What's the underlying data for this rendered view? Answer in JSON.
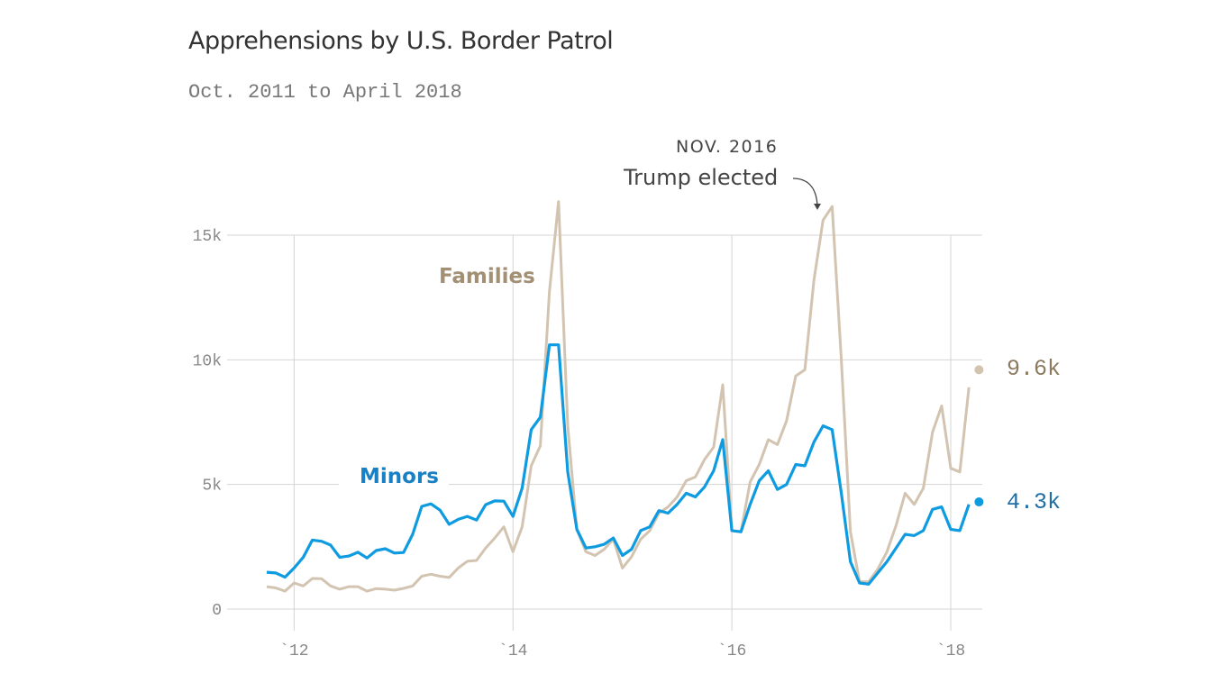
{
  "chart_data": {
    "type": "line",
    "title": "Apprehensions by U.S. Border Patrol",
    "subtitle": "Oct. 2011 to April 2018",
    "x_start": "2011-10",
    "x_end": "2018-04",
    "x_interval": "month",
    "xlabel": "",
    "ylabel": "",
    "ylim": [
      0,
      15000
    ],
    "yticks": [
      {
        "value": 0,
        "label": "0"
      },
      {
        "value": 5000,
        "label": "5k"
      },
      {
        "value": 10000,
        "label": "10k"
      },
      {
        "value": 15000,
        "label": "15k"
      }
    ],
    "xticks": [
      {
        "value": "2012-01",
        "label": "`12"
      },
      {
        "value": "2014-01",
        "label": "`14"
      },
      {
        "value": "2016-01",
        "label": "`16"
      },
      {
        "value": "2018-01",
        "label": "`18"
      }
    ],
    "grid": true,
    "series": [
      {
        "name": "Families",
        "color": "#d3c4b1",
        "label_color": "#a38f73",
        "end_label": "9.6k",
        "end_label_color": "#8c7a5f",
        "values": [
          900,
          850,
          720,
          1050,
          930,
          1230,
          1220,
          930,
          800,
          900,
          900,
          720,
          820,
          800,
          760,
          830,
          930,
          1320,
          1400,
          1320,
          1270,
          1650,
          1920,
          1950,
          2450,
          2850,
          3300,
          2300,
          3300,
          5750,
          6550,
          12750,
          16350,
          7350,
          3200,
          2300,
          2150,
          2400,
          2800,
          1650,
          2100,
          2800,
          3150,
          3850,
          4100,
          4500,
          5150,
          5300,
          6000,
          6500,
          9000,
          3150,
          3100,
          5100,
          5800,
          6800,
          6600,
          7550,
          9350,
          9600,
          13200,
          15600,
          16150,
          10000,
          3100,
          1100,
          1100,
          1600,
          2300,
          3350,
          4650,
          4200,
          4850,
          7100,
          8150,
          5650,
          5500,
          8900,
          9600
        ]
      },
      {
        "name": "Minors",
        "color": "#0e9be0",
        "label_color": "#1a80c4",
        "end_label": "4.3k",
        "end_label_color": "#1f6ea6",
        "values": [
          1480,
          1450,
          1280,
          1650,
          2080,
          2770,
          2720,
          2570,
          2080,
          2130,
          2280,
          2050,
          2350,
          2420,
          2250,
          2270,
          3000,
          4120,
          4220,
          3970,
          3400,
          3600,
          3720,
          3570,
          4190,
          4340,
          4330,
          3720,
          4850,
          7200,
          7700,
          10600,
          10600,
          5500,
          3200,
          2450,
          2500,
          2600,
          2850,
          2150,
          2400,
          3150,
          3300,
          3950,
          3850,
          4200,
          4650,
          4500,
          4900,
          5550,
          6800,
          3150,
          3100,
          4200,
          5150,
          5550,
          4800,
          5000,
          5800,
          5750,
          6700,
          7350,
          7200,
          4650,
          1900,
          1050,
          1000,
          1450,
          1900,
          2450,
          3000,
          2950,
          3150,
          4000,
          4100,
          3200,
          3150,
          4200,
          4300
        ]
      }
    ],
    "annotations": [
      {
        "date": "2016-11",
        "label": "NOV. 2016",
        "text": "Trump elected"
      }
    ]
  }
}
